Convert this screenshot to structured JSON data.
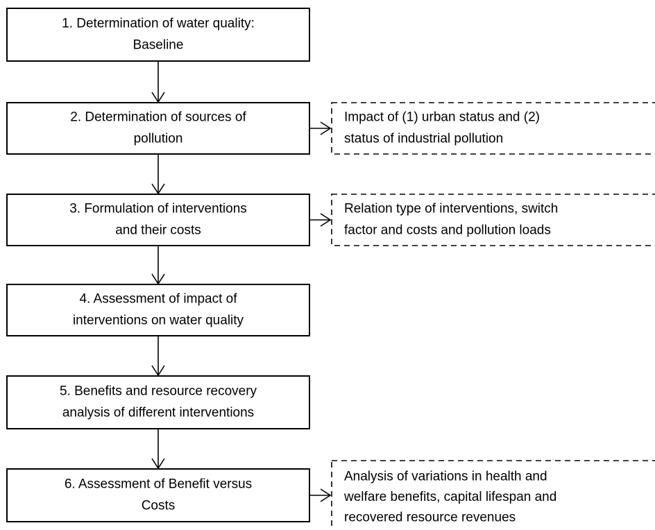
{
  "nodes": [
    {
      "lines": [
        "1. Determination of water quality:",
        "Baseline"
      ]
    },
    {
      "lines": [
        "2. Determination of sources of",
        "pollution"
      ]
    },
    {
      "lines": [
        "3. Formulation of interventions",
        "and their costs"
      ]
    },
    {
      "lines": [
        "4. Assessment of impact of",
        "interventions on water quality"
      ]
    },
    {
      "lines": [
        "5. Benefits and resource recovery",
        "analysis of different interventions"
      ]
    },
    {
      "lines": [
        "6. Assessment of Benefit versus",
        "Costs"
      ]
    }
  ],
  "notes": [
    {
      "lines": [
        "Impact of (1) urban status and (2)",
        "status of industrial pollution"
      ]
    },
    {
      "lines": [
        "Relation type of interventions, switch",
        "factor and costs and pollution loads"
      ]
    },
    {
      "lines": [
        "Analysis of variations in health and",
        "welfare benefits, capital lifespan and",
        "recovered resource revenues"
      ]
    }
  ]
}
